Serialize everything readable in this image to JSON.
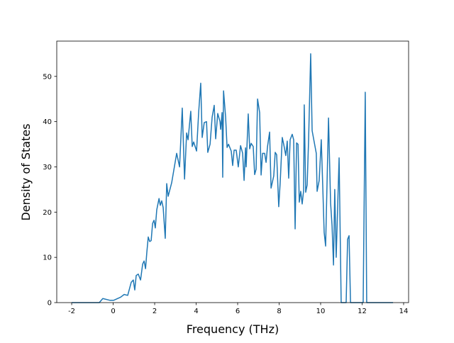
{
  "chart_data": {
    "type": "line",
    "xlabel": "Frequency (THz)",
    "ylabel": "Density of States",
    "color": "#1f77b4",
    "x": [
      -2,
      -0.67,
      -0.5,
      -0.15,
      0.02,
      0.36,
      0.53,
      0.7,
      0.87,
      0.97,
      1.04,
      1.11,
      1.21,
      1.32,
      1.42,
      1.49,
      1.56,
      1.62,
      1.69,
      1.76,
      1.83,
      1.9,
      1.97,
      2.03,
      2.1,
      2.21,
      2.27,
      2.34,
      2.41,
      2.51,
      2.58,
      2.65,
      2.82,
      3.06,
      3.2,
      3.33,
      3.44,
      3.54,
      3.61,
      3.74,
      3.81,
      3.88,
      4.02,
      4.12,
      4.22,
      4.29,
      4.39,
      4.5,
      4.56,
      4.67,
      4.77,
      4.87,
      4.94,
      5.04,
      5.15,
      5.18,
      5.25,
      5.28,
      5.32,
      5.42,
      5.49,
      5.56,
      5.69,
      5.76,
      5.83,
      5.93,
      6.03,
      6.14,
      6.24,
      6.31,
      6.38,
      6.41,
      6.51,
      6.58,
      6.65,
      6.75,
      6.82,
      6.89,
      6.96,
      7.06,
      7.13,
      7.2,
      7.3,
      7.37,
      7.44,
      7.54,
      7.61,
      7.74,
      7.81,
      7.88,
      7.98,
      8.05,
      8.15,
      8.22,
      8.32,
      8.39,
      8.46,
      8.53,
      8.63,
      8.7,
      8.77,
      8.84,
      8.91,
      8.97,
      9.04,
      9.11,
      9.18,
      9.21,
      9.28,
      9.35,
      9.42,
      9.52,
      9.59,
      9.69,
      9.79,
      9.83,
      9.93,
      10.03,
      10.1,
      10.17,
      10.24,
      10.38,
      10.48,
      10.55,
      10.62,
      10.68,
      10.75,
      10.89,
      10.99,
      11.23,
      11.3,
      11.37,
      11.44,
      12.05,
      12.15,
      12.22,
      13.49
    ],
    "values": [
      0,
      0,
      0.9,
      0.5,
      0.5,
      1.2,
      1.8,
      1.6,
      4.5,
      5,
      2.8,
      6,
      6.3,
      5,
      8.5,
      9.2,
      7.5,
      11,
      14.5,
      13.5,
      13.7,
      17.5,
      18.2,
      16.5,
      20.5,
      23,
      21.5,
      22.5,
      21,
      14.2,
      26.3,
      23.5,
      26.5,
      33,
      30,
      43,
      27.3,
      37.5,
      36,
      42.3,
      34.5,
      35.5,
      33.5,
      42,
      48.5,
      36.5,
      39.8,
      40,
      33.2,
      35,
      41,
      43.6,
      36.2,
      41.8,
      40,
      38.3,
      42,
      27.7,
      46.8,
      41,
      34.3,
      35,
      33.5,
      30.3,
      33.7,
      33.7,
      30,
      34.7,
      33,
      27,
      34.2,
      30,
      41.7,
      34,
      35.2,
      34.5,
      28.3,
      29.5,
      45,
      42,
      28.2,
      33,
      33,
      31,
      34.5,
      37.7,
      25.3,
      28,
      33.2,
      32.7,
      21.2,
      26.5,
      36.5,
      35,
      32.5,
      35.7,
      27.5,
      36,
      37.2,
      36,
      16.3,
      35.3,
      35,
      22.2,
      24.6,
      21.8,
      24.8,
      43.7,
      24.4,
      26,
      36,
      55,
      38,
      35.5,
      33,
      24.6,
      27,
      36,
      26,
      15.5,
      12.5,
      40.8,
      22,
      17,
      8.3,
      25,
      10,
      32,
      0,
      0,
      14,
      14.8,
      0,
      0,
      46.5,
      0,
      0
    ],
    "xlim": [
      -2.72,
      14.24
    ],
    "ylim": [
      0,
      57.8
    ],
    "xticks": [
      -2,
      0,
      2,
      4,
      6,
      8,
      10,
      12,
      14
    ],
    "yticks": [
      0,
      10,
      20,
      30,
      40,
      50
    ]
  }
}
